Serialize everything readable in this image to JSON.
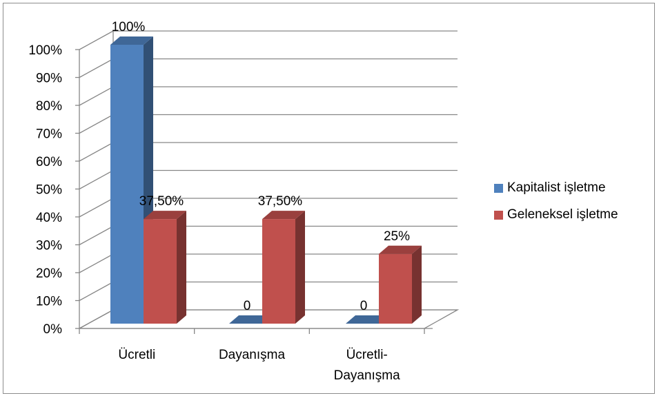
{
  "chart_data": {
    "type": "bar",
    "categories": [
      "Ücretli",
      "Dayanışma",
      "Ücretli-\nDayanışma"
    ],
    "series": [
      {
        "name": "Kapitalist işletme",
        "values": [
          1.0,
          0,
          0
        ],
        "labels": [
          "100%",
          "0",
          "0"
        ],
        "color": "#4f81bd"
      },
      {
        "name": "Geleneksel işletme",
        "values": [
          0.375,
          0.375,
          0.25
        ],
        "labels": [
          "37,50%",
          "37,50%",
          "25%"
        ],
        "color": "#c0504d"
      }
    ],
    "yticks": [
      "0%",
      "10%",
      "20%",
      "30%",
      "40%",
      "50%",
      "60%",
      "70%",
      "80%",
      "90%",
      "100%"
    ],
    "ylim": [
      0,
      1
    ],
    "grid": true,
    "legend_position": "right",
    "style": "3d-clustered-column"
  }
}
